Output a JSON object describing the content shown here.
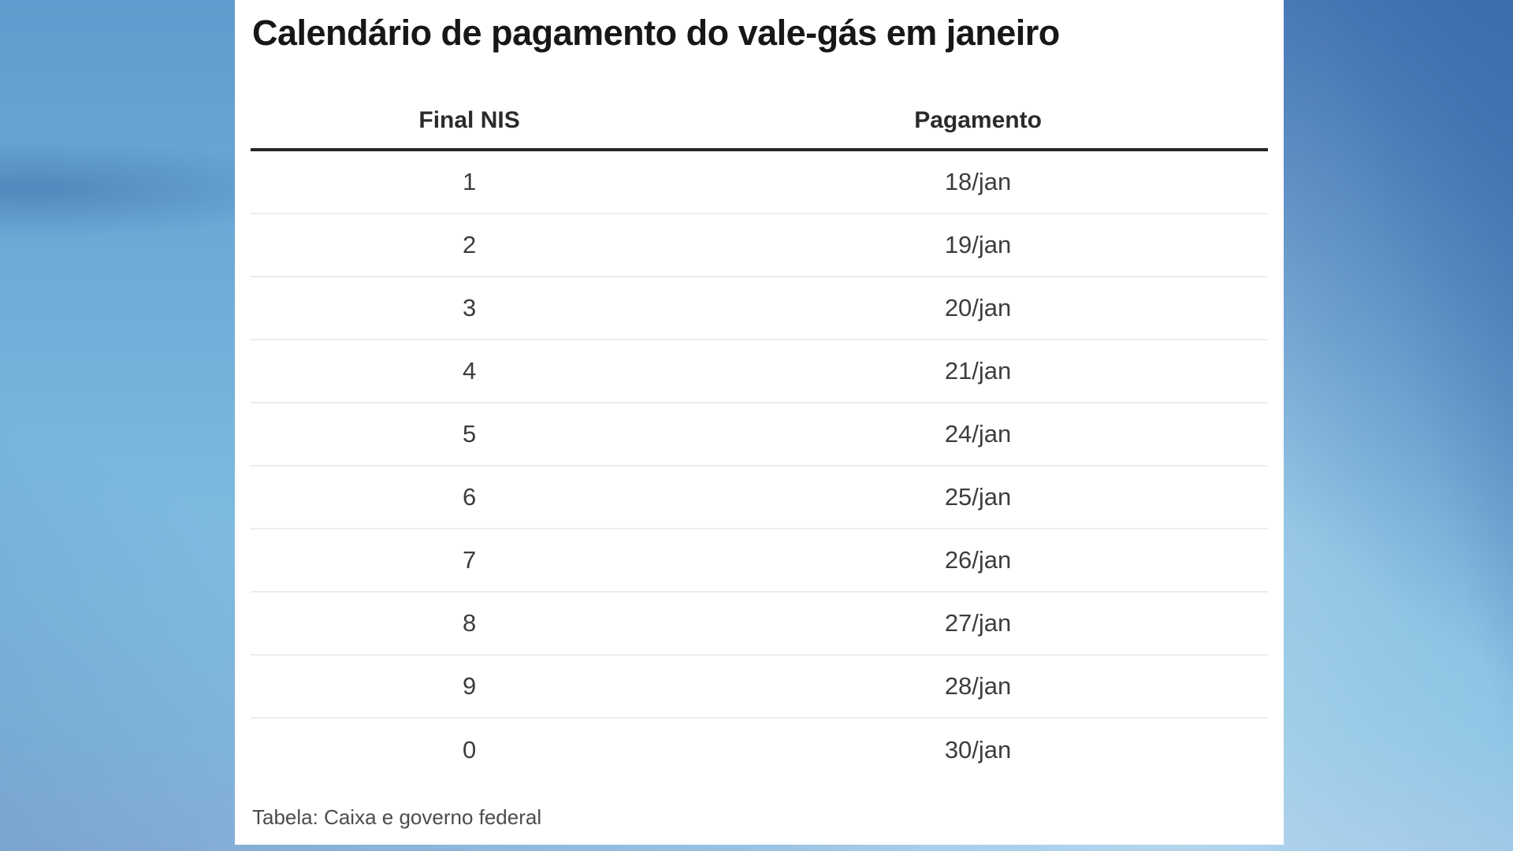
{
  "title": "Calendário de pagamento do vale-gás em janeiro",
  "footer": {
    "source": "Tabela: Caixa e governo federal"
  },
  "chart_data": {
    "type": "table",
    "title": "Calendário de pagamento do vale-gás em janeiro",
    "columns": [
      "Final NIS",
      "Pagamento"
    ],
    "rows": [
      [
        "1",
        "18/jan"
      ],
      [
        "2",
        "19/jan"
      ],
      [
        "3",
        "20/jan"
      ],
      [
        "4",
        "21/jan"
      ],
      [
        "5",
        "24/jan"
      ],
      [
        "6",
        "25/jan"
      ],
      [
        "7",
        "26/jan"
      ],
      [
        "8",
        "27/jan"
      ],
      [
        "9",
        "28/jan"
      ],
      [
        "0",
        "30/jan"
      ]
    ],
    "source": "Tabela: Caixa e governo federal",
    "layout_hints": {
      "header_rule": "thick dark line under column headers",
      "row_dividers": "thin light gray lines",
      "column_alignment": "center"
    }
  },
  "colors": {
    "panel_background": "#ffffff",
    "title_text": "#171717",
    "header_text": "#2b2b2b",
    "cell_text": "#3d3d3d",
    "footer_text": "#4c4c4c",
    "header_rule": "#242424",
    "row_divider": "#ececec",
    "backdrop_blue_dark": "#3c6cae",
    "backdrop_blue_mid": "#73b1da",
    "backdrop_blue_light": "#a0c9e8"
  }
}
